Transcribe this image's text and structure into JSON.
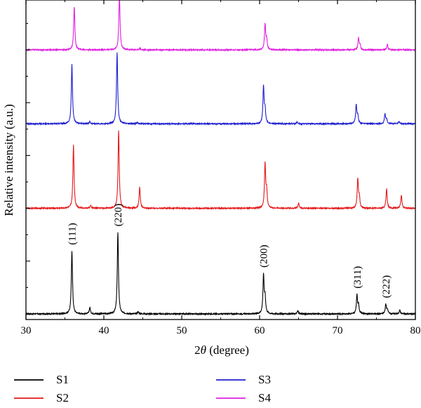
{
  "chart_data": {
    "type": "line",
    "title": "",
    "xlabel_prefix": "2",
    "xlabel_theta": "θ",
    "xlabel_suffix": " (degree)",
    "ylabel": "Relative intensity (a.u.)",
    "xlim": [
      30,
      80
    ],
    "x_ticks": [
      "30",
      "40",
      "50",
      "60",
      "70",
      "80"
    ],
    "y_ticks_shown": false,
    "grid": false,
    "legend_position": "bottom",
    "colors": {
      "S1": "#000000",
      "S2": "#e41a1c",
      "S3": "#1f1fd0",
      "S4": "#e020e0"
    },
    "peak_labels": [
      {
        "text": "(111)",
        "x": 35.9
      },
      {
        "text": "(220)",
        "x": 41.8
      },
      {
        "text": "(200)",
        "x": 60.5
      },
      {
        "text": "(311)",
        "x": 72.5
      },
      {
        "text": "(222)",
        "x": 76.2
      }
    ],
    "series": [
      {
        "name": "S1",
        "offset": 0,
        "peaks": [
          [
            35.9,
            120
          ],
          [
            38.2,
            12
          ],
          [
            41.8,
            155
          ],
          [
            44.4,
            4
          ],
          [
            60.5,
            72
          ],
          [
            60.7,
            30
          ],
          [
            64.9,
            6
          ],
          [
            72.5,
            35
          ],
          [
            72.7,
            15
          ],
          [
            76.2,
            18
          ],
          [
            76.4,
            8
          ],
          [
            78.0,
            7
          ]
        ]
      },
      {
        "name": "S2",
        "offset": 200,
        "peaks": [
          [
            36.1,
            120
          ],
          [
            38.3,
            5
          ],
          [
            41.9,
            148
          ],
          [
            44.6,
            40
          ],
          [
            60.7,
            84
          ],
          [
            60.9,
            30
          ],
          [
            65.0,
            10
          ],
          [
            72.6,
            55
          ],
          [
            72.8,
            20
          ],
          [
            76.3,
            37
          ],
          [
            78.2,
            25
          ]
        ]
      },
      {
        "name": "S3",
        "offset": 360,
        "peaks": [
          [
            35.9,
            112
          ],
          [
            38.2,
            4
          ],
          [
            41.7,
            135
          ],
          [
            44.3,
            2
          ],
          [
            60.5,
            70
          ],
          [
            60.7,
            25
          ],
          [
            64.8,
            3
          ],
          [
            72.4,
            35
          ],
          [
            72.6,
            15
          ],
          [
            76.1,
            18
          ],
          [
            76.3,
            8
          ],
          [
            77.9,
            5
          ]
        ]
      },
      {
        "name": "S4",
        "offset": 500,
        "peaks": [
          [
            36.2,
            82
          ],
          [
            42.0,
            108
          ],
          [
            44.6,
            3
          ],
          [
            60.7,
            48
          ],
          [
            60.9,
            18
          ],
          [
            72.7,
            22
          ],
          [
            72.9,
            8
          ],
          [
            76.4,
            10
          ]
        ]
      }
    ]
  }
}
